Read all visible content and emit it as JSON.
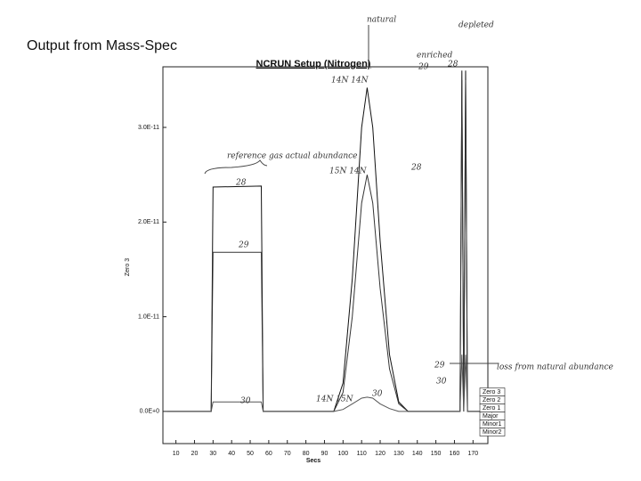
{
  "heading": "Output from Mass-Spec",
  "chart_data": {
    "type": "line",
    "title": "NCRUN Setup (Nitrogen)",
    "y_label": "Zero 3",
    "x_label": "Secs",
    "x": [
      5,
      28,
      29,
      30,
      56,
      57,
      95,
      100,
      105,
      110,
      113,
      116,
      120,
      125,
      130,
      135,
      160,
      163,
      164,
      165,
      166,
      167,
      175
    ],
    "series": [
      {
        "name": "Major",
        "color": "#111111",
        "values": [
          0,
          0,
          0,
          2.37e-11,
          2.38e-11,
          0,
          0,
          3e-12,
          1.4e-11,
          3e-11,
          3.42e-11,
          3e-11,
          1.8e-11,
          6e-12,
          1e-12,
          0,
          0,
          0,
          3.6e-11,
          0,
          3.6e-11,
          0,
          0
        ]
      },
      {
        "name": "Minor1",
        "color": "#333333",
        "values": [
          0,
          0,
          0,
          1.68e-11,
          1.68e-11,
          0,
          0,
          2e-12,
          1e-11,
          2.2e-11,
          2.5e-11,
          2.2e-11,
          1.3e-11,
          4.5e-12,
          8e-13,
          0,
          0,
          0,
          3.5e-11,
          0,
          3.5e-11,
          0,
          0
        ]
      },
      {
        "name": "Minor2",
        "color": "#555555",
        "values": [
          0,
          0,
          0,
          1e-12,
          1e-12,
          0,
          0,
          2e-13,
          8e-13,
          1.4e-12,
          1.5e-12,
          1.4e-12,
          8e-13,
          3e-13,
          0,
          0,
          0,
          0,
          6e-12,
          0,
          6e-12,
          0,
          0
        ]
      }
    ],
    "legend_labels": [
      "Zero 3",
      "Zero 2",
      "Zero 1",
      "Major",
      "Minor1",
      "Minor2"
    ],
    "xlim": [
      3,
      178
    ],
    "ylim": [
      -3.4e-12,
      3.64e-11
    ],
    "xticks": [
      10,
      20,
      30,
      40,
      50,
      60,
      70,
      80,
      90,
      100,
      110,
      120,
      130,
      140,
      150,
      160,
      170
    ],
    "yticks": [
      {
        "value": 0,
        "label": "0.0E+0"
      },
      {
        "value": 1e-11,
        "label": "1.0E-11"
      },
      {
        "value": 2e-11,
        "label": "2.0E-11"
      },
      {
        "value": 3e-11,
        "label": "3.0E-11"
      }
    ],
    "annotations": [
      "reference gas actual abundance",
      "28",
      "29",
      "30",
      "14N 14N",
      "15N 14N",
      "14N 15N",
      "30",
      "natural",
      "enriched",
      "depleted",
      "29",
      "28",
      "28",
      "29",
      "30",
      "loss from natural abundance"
    ]
  }
}
